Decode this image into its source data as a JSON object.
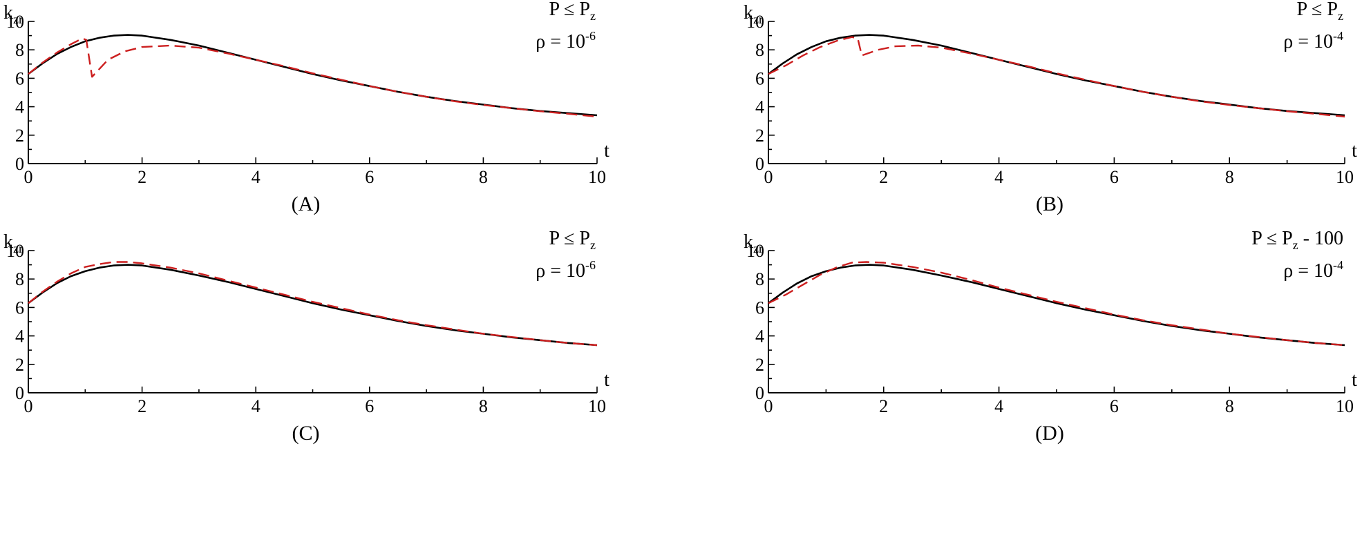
{
  "chart_data": [
    {
      "type": "line",
      "caption": "(A)",
      "ylabel": "k",
      "ylabel_sub": "zr",
      "xlabel": "t",
      "annotation": {
        "line1": {
          "main": "P ≤ P",
          "sub": "z",
          "suffix": ""
        },
        "line2": {
          "main": "ρ = 10",
          "sup": "-6"
        }
      },
      "xlim": [
        0,
        10
      ],
      "ylim": [
        0,
        10
      ],
      "xticks": [
        "0",
        "2",
        "4",
        "6",
        "8",
        "10"
      ],
      "yticks": [
        "0",
        "2",
        "4",
        "6",
        "8",
        "10"
      ],
      "series": [
        {
          "style": "solid",
          "color": "#000000",
          "x": [
            0,
            0.25,
            0.5,
            0.75,
            1.0,
            1.25,
            1.5,
            1.75,
            2.0,
            2.5,
            3.0,
            3.5,
            4.0,
            4.5,
            5.0,
            5.5,
            6.0,
            6.5,
            7.0,
            7.5,
            8.0,
            8.5,
            9.0,
            9.5,
            10.0
          ],
          "y": [
            6.3,
            7.05,
            7.7,
            8.2,
            8.6,
            8.85,
            9.0,
            9.05,
            9.0,
            8.7,
            8.3,
            7.8,
            7.3,
            6.8,
            6.3,
            5.85,
            5.45,
            5.05,
            4.7,
            4.4,
            4.15,
            3.9,
            3.7,
            3.55,
            3.4
          ]
        },
        {
          "style": "dashed",
          "color": "#cc1f1f",
          "x": [
            0,
            0.25,
            0.5,
            0.75,
            0.95,
            1.02,
            1.12,
            1.4,
            1.7,
            2.0,
            2.5,
            3.0,
            3.5,
            4.0,
            4.5,
            5.0,
            5.5,
            6.0,
            6.5,
            7.0,
            7.5,
            8.0,
            8.5,
            9.0,
            9.5,
            10.0
          ],
          "y": [
            6.3,
            7.1,
            7.8,
            8.4,
            8.8,
            8.7,
            6.1,
            7.3,
            7.9,
            8.2,
            8.3,
            8.15,
            7.75,
            7.3,
            6.85,
            6.35,
            5.9,
            5.45,
            5.05,
            4.7,
            4.38,
            4.12,
            3.9,
            3.68,
            3.5,
            3.3
          ]
        }
      ]
    },
    {
      "type": "line",
      "caption": "(B)",
      "ylabel": "k",
      "ylabel_sub": "zr",
      "xlabel": "t",
      "annotation": {
        "line1": {
          "main": "P ≤ P",
          "sub": "z",
          "suffix": ""
        },
        "line2": {
          "main": "ρ = 10",
          "sup": "-4"
        }
      },
      "xlim": [
        0,
        10
      ],
      "ylim": [
        0,
        10
      ],
      "xticks": [
        "0",
        "2",
        "4",
        "6",
        "8",
        "10"
      ],
      "yticks": [
        "0",
        "2",
        "4",
        "6",
        "8",
        "10"
      ],
      "series": [
        {
          "style": "solid",
          "color": "#000000",
          "x": [
            0,
            0.25,
            0.5,
            0.75,
            1.0,
            1.25,
            1.5,
            1.75,
            2.0,
            2.5,
            3.0,
            3.5,
            4.0,
            4.5,
            5.0,
            5.5,
            6.0,
            6.5,
            7.0,
            7.5,
            8.0,
            8.5,
            9.0,
            9.5,
            10.0
          ],
          "y": [
            6.3,
            7.05,
            7.7,
            8.2,
            8.6,
            8.85,
            9.0,
            9.05,
            9.0,
            8.7,
            8.3,
            7.8,
            7.3,
            6.8,
            6.3,
            5.85,
            5.45,
            5.05,
            4.7,
            4.4,
            4.15,
            3.9,
            3.7,
            3.55,
            3.4
          ]
        },
        {
          "style": "dashed",
          "color": "#cc1f1f",
          "x": [
            0,
            0.3,
            0.6,
            0.9,
            1.2,
            1.45,
            1.55,
            1.62,
            1.9,
            2.2,
            2.6,
            3.0,
            3.5,
            4.0,
            4.5,
            5.0,
            5.5,
            6.0,
            6.5,
            7.0,
            7.5,
            8.0,
            8.5,
            9.0,
            9.5,
            10.0
          ],
          "y": [
            6.3,
            6.9,
            7.6,
            8.2,
            8.65,
            8.9,
            8.8,
            7.6,
            8.0,
            8.25,
            8.3,
            8.15,
            7.75,
            7.3,
            6.85,
            6.35,
            5.9,
            5.45,
            5.05,
            4.7,
            4.38,
            4.12,
            3.9,
            3.68,
            3.5,
            3.3
          ]
        }
      ]
    },
    {
      "type": "line",
      "caption": "(C)",
      "ylabel": "k",
      "ylabel_sub": "zr",
      "xlabel": "t",
      "annotation": {
        "line1": {
          "main": "P ≤ P",
          "sub": "z",
          "suffix": ""
        },
        "line2": {
          "main": "ρ = 10",
          "sup": "-6"
        }
      },
      "xlim": [
        0,
        10
      ],
      "ylim": [
        0,
        10
      ],
      "xticks": [
        "0",
        "2",
        "4",
        "6",
        "8",
        "10"
      ],
      "yticks": [
        "0",
        "2",
        "4",
        "6",
        "8",
        "10"
      ],
      "series": [
        {
          "style": "solid",
          "color": "#000000",
          "x": [
            0,
            0.25,
            0.5,
            0.75,
            1.0,
            1.25,
            1.5,
            1.75,
            2.0,
            2.5,
            3.0,
            3.5,
            4.0,
            4.5,
            5.0,
            5.5,
            6.0,
            6.5,
            7.0,
            7.5,
            8.0,
            8.5,
            9.0,
            9.5,
            10.0
          ],
          "y": [
            6.3,
            7.05,
            7.7,
            8.2,
            8.55,
            8.8,
            8.95,
            9.0,
            8.95,
            8.65,
            8.25,
            7.8,
            7.3,
            6.8,
            6.3,
            5.85,
            5.45,
            5.05,
            4.7,
            4.4,
            4.15,
            3.9,
            3.7,
            3.5,
            3.35
          ]
        },
        {
          "style": "dashed",
          "color": "#cc1f1f",
          "x": [
            0,
            0.25,
            0.5,
            0.75,
            1.0,
            1.25,
            1.5,
            1.75,
            2.0,
            2.5,
            3.0,
            3.5,
            4.0,
            4.5,
            5.0,
            5.5,
            6.0,
            6.5,
            7.0,
            7.5,
            8.0,
            8.5,
            9.0,
            9.5,
            10.0
          ],
          "y": [
            6.3,
            7.1,
            7.8,
            8.4,
            8.85,
            9.05,
            9.2,
            9.2,
            9.1,
            8.8,
            8.4,
            7.9,
            7.4,
            6.9,
            6.4,
            5.95,
            5.5,
            5.1,
            4.75,
            4.45,
            4.15,
            3.92,
            3.7,
            3.5,
            3.35
          ]
        }
      ]
    },
    {
      "type": "line",
      "caption": "(D)",
      "ylabel": "k",
      "ylabel_sub": "zr",
      "xlabel": "t",
      "annotation": {
        "line1": {
          "main": "P ≤ P",
          "sub": "z",
          "suffix": " - 100"
        },
        "line2": {
          "main": "ρ = 10",
          "sup": "-4"
        }
      },
      "xlim": [
        0,
        10
      ],
      "ylim": [
        0,
        10
      ],
      "xticks": [
        "0",
        "2",
        "4",
        "6",
        "8",
        "10"
      ],
      "yticks": [
        "0",
        "2",
        "4",
        "6",
        "8",
        "10"
      ],
      "series": [
        {
          "style": "solid",
          "color": "#000000",
          "x": [
            0,
            0.25,
            0.5,
            0.75,
            1.0,
            1.25,
            1.5,
            1.75,
            2.0,
            2.5,
            3.0,
            3.5,
            4.0,
            4.5,
            5.0,
            5.5,
            6.0,
            6.5,
            7.0,
            7.5,
            8.0,
            8.5,
            9.0,
            9.5,
            10.0
          ],
          "y": [
            6.3,
            7.05,
            7.7,
            8.2,
            8.55,
            8.8,
            8.95,
            9.0,
            8.95,
            8.65,
            8.25,
            7.8,
            7.3,
            6.8,
            6.3,
            5.85,
            5.45,
            5.05,
            4.7,
            4.4,
            4.15,
            3.9,
            3.7,
            3.5,
            3.35
          ]
        },
        {
          "style": "dashed",
          "color": "#cc1f1f",
          "x": [
            0,
            0.3,
            0.6,
            0.9,
            1.2,
            1.45,
            1.7,
            2.0,
            2.5,
            3.0,
            3.5,
            4.0,
            4.5,
            5.0,
            5.5,
            6.0,
            6.5,
            7.0,
            7.5,
            8.0,
            8.5,
            9.0,
            9.5,
            10.0
          ],
          "y": [
            6.3,
            6.9,
            7.6,
            8.3,
            8.85,
            9.15,
            9.2,
            9.15,
            8.85,
            8.45,
            7.95,
            7.4,
            6.9,
            6.4,
            5.95,
            5.5,
            5.1,
            4.75,
            4.45,
            4.15,
            3.92,
            3.7,
            3.5,
            3.35
          ]
        }
      ]
    }
  ]
}
